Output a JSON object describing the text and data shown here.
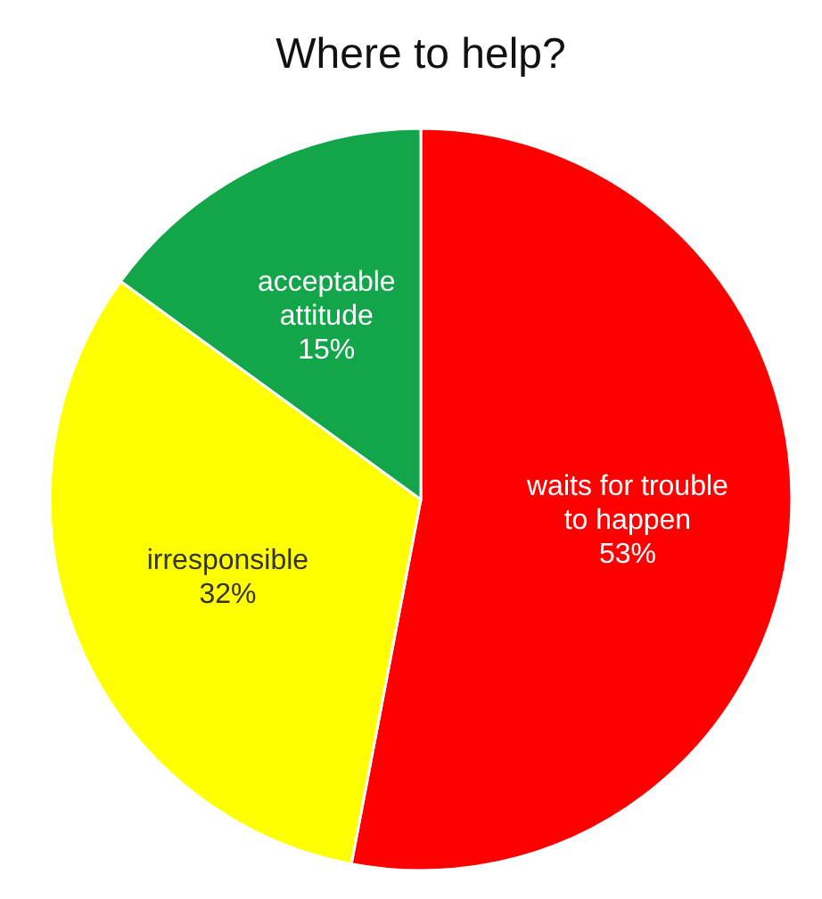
{
  "chart_data": {
    "type": "pie",
    "title": "Where to help?",
    "categories": [
      "waits for trouble to happen",
      "irresponsible",
      "acceptable attitude"
    ],
    "values": [
      53,
      32,
      15
    ],
    "colors": [
      "#ff0000",
      "#ffff00",
      "#13a54a"
    ],
    "value_labels": [
      "53%",
      "32%",
      "15%"
    ]
  }
}
